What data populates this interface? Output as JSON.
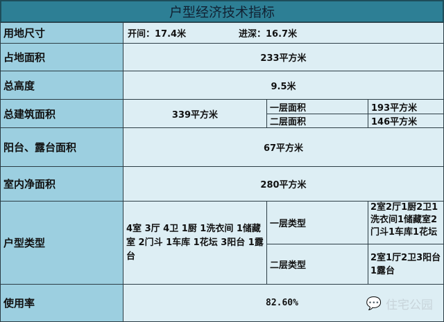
{
  "title": "户型经济技术指标",
  "rows": {
    "land_size": {
      "label": "用地尺寸",
      "width": "开间：17.4米",
      "depth": "进深：16.7米"
    },
    "footprint": {
      "label": "占地面积",
      "value": "233平方米"
    },
    "height": {
      "label": "总高度",
      "value": "9.5米"
    },
    "gfa": {
      "label": "总建筑面积",
      "value": "339平方米",
      "f1_label": "一层面积",
      "f1_value": "193平方米",
      "f2_label": "二层面积",
      "f2_value": "146平方米"
    },
    "balcony": {
      "label": "阳台、露台面积",
      "value": "67平方米"
    },
    "net": {
      "label": "室内净面积",
      "value": "280平方米"
    },
    "type": {
      "label": "户型类型",
      "value": "4室 3厅 4卫 1厨 1洗衣间 1储藏室 2门斗 1车库 1花坛 3阳台 1露台",
      "f1_label": "一层类型",
      "f1_value": "2室2厅1厨2卫1洗衣间1储藏室2门斗1车库1花坛",
      "f2_label": "二层类型",
      "f2_value": "2室1厅2卫3阳台1露台"
    },
    "usage": {
      "label": "使用率",
      "value": "82.60%"
    }
  },
  "watermark": "住宅公园"
}
